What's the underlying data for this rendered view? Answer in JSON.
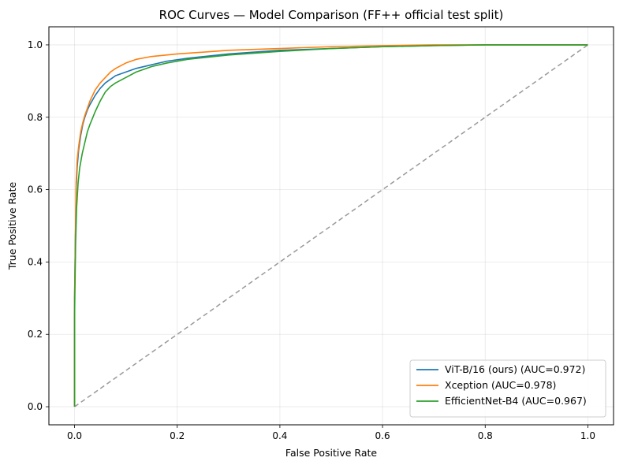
{
  "chart_data": {
    "type": "line",
    "title": "ROC Curves — Model Comparison (FF++ official test split)",
    "xlabel": "False Positive Rate",
    "ylabel": "True Positive Rate",
    "xlim": [
      -0.05,
      1.05
    ],
    "ylim": [
      -0.05,
      1.05
    ],
    "xticks": [
      "0.0",
      "0.2",
      "0.4",
      "0.6",
      "0.8",
      "1.0"
    ],
    "yticks": [
      "0.0",
      "0.2",
      "0.4",
      "0.6",
      "0.8",
      "1.0"
    ],
    "grid": true,
    "legend_position": "lower-right",
    "series": [
      {
        "name": "ViT-B/16 (ours) (AUC=0.972)",
        "color": "#1f77b4",
        "x": [
          0,
          0,
          0.002,
          0.003,
          0.005,
          0.008,
          0.012,
          0.016,
          0.02,
          0.025,
          0.03,
          0.04,
          0.05,
          0.06,
          0.07,
          0.08,
          0.1,
          0.12,
          0.15,
          0.18,
          0.22,
          0.3,
          0.4,
          0.5,
          0.6,
          0.7,
          0.8,
          0.9,
          1.0
        ],
        "y": [
          0,
          0.3,
          0.5,
          0.6,
          0.66,
          0.71,
          0.75,
          0.78,
          0.8,
          0.82,
          0.835,
          0.86,
          0.88,
          0.895,
          0.905,
          0.915,
          0.925,
          0.935,
          0.945,
          0.955,
          0.963,
          0.975,
          0.985,
          0.99,
          0.995,
          0.998,
          1.0,
          1.0,
          1.0
        ]
      },
      {
        "name": "Xception (AUC=0.978)",
        "color": "#ff7f0e",
        "x": [
          0,
          0,
          0.002,
          0.003,
          0.005,
          0.008,
          0.012,
          0.016,
          0.02,
          0.025,
          0.03,
          0.04,
          0.05,
          0.06,
          0.07,
          0.08,
          0.1,
          0.12,
          0.15,
          0.2,
          0.25,
          0.3,
          0.4,
          0.5,
          0.6,
          0.7,
          0.8,
          0.9,
          1.0
        ],
        "y": [
          0,
          0.3,
          0.5,
          0.62,
          0.68,
          0.72,
          0.76,
          0.785,
          0.805,
          0.825,
          0.845,
          0.875,
          0.895,
          0.91,
          0.925,
          0.935,
          0.95,
          0.96,
          0.968,
          0.975,
          0.98,
          0.985,
          0.99,
          0.995,
          0.998,
          1.0,
          1.0,
          1.0,
          1.0
        ]
      },
      {
        "name": "EfficientNet-B4 (AUC=0.967)",
        "color": "#2ca02c",
        "x": [
          0,
          0,
          0.002,
          0.004,
          0.007,
          0.01,
          0.015,
          0.02,
          0.025,
          0.03,
          0.04,
          0.05,
          0.06,
          0.07,
          0.08,
          0.1,
          0.12,
          0.15,
          0.18,
          0.22,
          0.3,
          0.4,
          0.5,
          0.6,
          0.7,
          0.8,
          0.9,
          1.0
        ],
        "y": [
          0,
          0.25,
          0.45,
          0.55,
          0.62,
          0.66,
          0.7,
          0.73,
          0.76,
          0.78,
          0.815,
          0.845,
          0.87,
          0.885,
          0.895,
          0.91,
          0.925,
          0.94,
          0.95,
          0.96,
          0.972,
          0.982,
          0.99,
          0.995,
          0.998,
          1.0,
          1.0,
          1.0
        ]
      },
      {
        "name": "",
        "color": "#999999",
        "dashed": true,
        "x": [
          0,
          1
        ],
        "y": [
          0,
          1
        ]
      }
    ]
  }
}
